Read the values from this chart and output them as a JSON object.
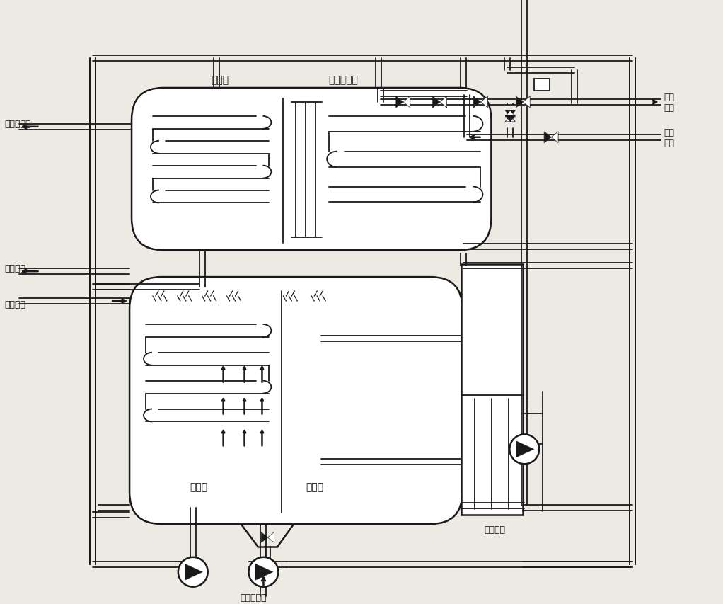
{
  "bg_color": "#ede9e3",
  "line_color": "#1a1a1a",
  "lw": 1.8,
  "lw2": 1.3,
  "labels": {
    "condenser": "冷凝器",
    "low_regen": "低温再生器",
    "evaporator": "蒸发器",
    "absorber": "吸收器",
    "heat_exchanger": "热交换器",
    "cooling_water_out": "冷却水出口",
    "cooling_water_in": "冷却水入口",
    "chilled_water_out": "冷水出口",
    "chilled_water_in": "冷水入口",
    "hot_water_out": "热水\n出口",
    "hot_water_in": "热水\n入口"
  },
  "font_size": 10,
  "font_size_small": 9
}
